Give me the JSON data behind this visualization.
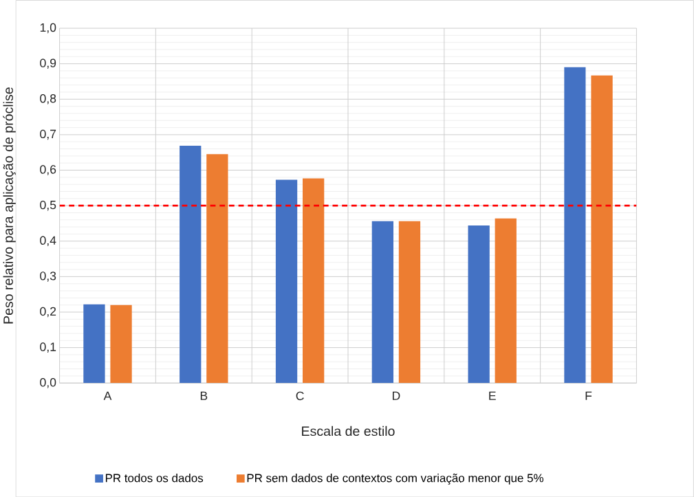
{
  "chart_data": {
    "type": "bar",
    "xlabel": "Escala de estilo",
    "ylabel": "Peso relativo para aplicação de próclise",
    "categories": [
      "A",
      "B",
      "C",
      "D",
      "E",
      "F"
    ],
    "series": [
      {
        "name": "PR todos os dados",
        "color": "#4472c4",
        "values": [
          0.222,
          0.669,
          0.573,
          0.456,
          0.444,
          0.89
        ]
      },
      {
        "name": "PR sem dados de contextos com variação menor que 5%",
        "color": "#ed7d31",
        "values": [
          0.22,
          0.645,
          0.577,
          0.456,
          0.464,
          0.867
        ]
      }
    ],
    "ylim": [
      0,
      1
    ],
    "yticks": [
      {
        "value": 0,
        "label": "0,0"
      },
      {
        "value": 0.1,
        "label": "0,1"
      },
      {
        "value": 0.2,
        "label": "0,2"
      },
      {
        "value": 0.3,
        "label": "0,3"
      },
      {
        "value": 0.4,
        "label": "0,4"
      },
      {
        "value": 0.5,
        "label": "0,5"
      },
      {
        "value": 0.6,
        "label": "0,6"
      },
      {
        "value": 0.7,
        "label": "0,7"
      },
      {
        "value": 0.8,
        "label": "0,8"
      },
      {
        "value": 0.9,
        "label": "0,9"
      },
      {
        "value": 1.0,
        "label": "1,0"
      }
    ],
    "ref_lines": [
      {
        "axis": "y",
        "value": 0.5,
        "color": "#ff0000",
        "line_style": "dashed"
      }
    ],
    "grid": true,
    "legend": "bottom"
  }
}
